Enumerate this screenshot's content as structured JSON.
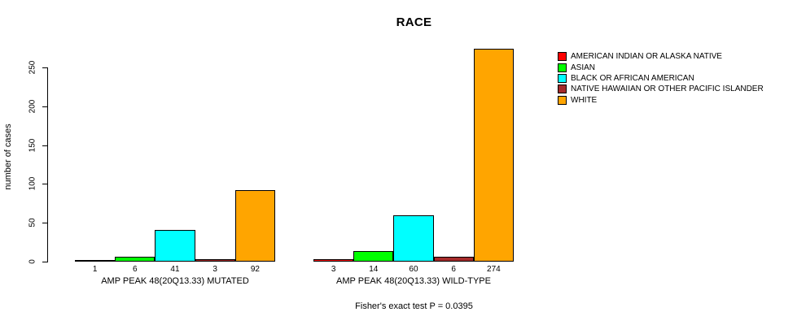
{
  "chart_data": {
    "type": "bar",
    "title": "RACE",
    "xlabel": "",
    "ylabel": "number of cases",
    "yticks": [
      0,
      50,
      100,
      150,
      200,
      250
    ],
    "ylim": [
      0,
      280
    ],
    "grid": false,
    "legend_position": "top-right",
    "bar_value_labels": true,
    "categories": [
      "AMERICAN INDIAN OR ALASKA NATIVE",
      "ASIAN",
      "BLACK OR AFRICAN AMERICAN",
      "NATIVE HAWAIIAN OR OTHER PACIFIC ISLANDER",
      "WHITE"
    ],
    "colors": [
      "#FF0000",
      "#00FF00",
      "#00FFFF",
      "#A52A2A",
      "#FFA500"
    ],
    "groups": [
      {
        "label": "AMP PEAK 48(20Q13.33) MUTATED",
        "values": [
          1,
          6,
          41,
          3,
          92
        ]
      },
      {
        "label": "AMP PEAK 48(20Q13.33) WILD-TYPE",
        "values": [
          3,
          14,
          60,
          6,
          274
        ]
      }
    ]
  },
  "footer": {
    "text": "Fisher's exact test P = 0.0395"
  }
}
